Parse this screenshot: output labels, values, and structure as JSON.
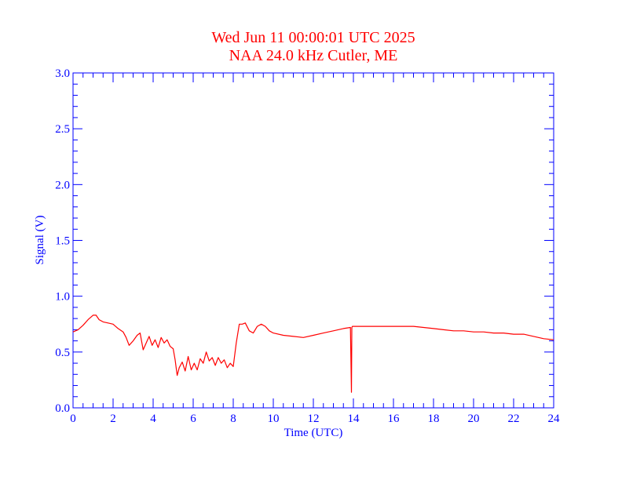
{
  "chart_data": {
    "type": "line",
    "title": "Wed Jun 11 00:00:01 UTC 2025",
    "subtitle": "NAA 24.0 kHz Cutler, ME",
    "xlabel": "Time (UTC)",
    "ylabel": "Signal (V)",
    "xlim": [
      0,
      24
    ],
    "ylim": [
      0.0,
      3.0
    ],
    "x_ticks": [
      "0",
      "2",
      "4",
      "6",
      "8",
      "10",
      "12",
      "14",
      "16",
      "18",
      "20",
      "22",
      "24"
    ],
    "y_ticks": [
      "0.0",
      "0.5",
      "1.0",
      "1.5",
      "2.0",
      "2.5",
      "3.0"
    ],
    "grid": false,
    "colors": {
      "axes": "#0000ff",
      "title": "#ff0000",
      "series": "#ff0000"
    },
    "series": [
      {
        "x": [
          0.0,
          0.25,
          0.5,
          0.75,
          1.0,
          1.15,
          1.3,
          1.5,
          1.75,
          2.0,
          2.25,
          2.5,
          2.65,
          2.8,
          3.0,
          3.2,
          3.35,
          3.5,
          3.65,
          3.8,
          3.95,
          4.1,
          4.25,
          4.4,
          4.55,
          4.7,
          4.85,
          5.0,
          5.1,
          5.2,
          5.3,
          5.45,
          5.6,
          5.75,
          5.9,
          6.05,
          6.2,
          6.35,
          6.5,
          6.65,
          6.8,
          6.95,
          7.1,
          7.25,
          7.4,
          7.55,
          7.7,
          7.85,
          8.0,
          8.15,
          8.3,
          8.45,
          8.6,
          8.8,
          9.0,
          9.2,
          9.4,
          9.6,
          9.8,
          10.0,
          10.5,
          11.0,
          11.5,
          12.0,
          12.5,
          13.0,
          13.5,
          13.85,
          13.9,
          13.92,
          13.95,
          14.0,
          14.5,
          15.0,
          15.5,
          16.0,
          16.5,
          17.0,
          17.5,
          18.0,
          18.5,
          19.0,
          19.5,
          20.0,
          20.5,
          21.0,
          21.5,
          22.0,
          22.5,
          23.0,
          23.5,
          24.0
        ],
        "y": [
          0.68,
          0.7,
          0.74,
          0.79,
          0.83,
          0.83,
          0.79,
          0.77,
          0.76,
          0.75,
          0.71,
          0.68,
          0.63,
          0.56,
          0.6,
          0.65,
          0.67,
          0.52,
          0.58,
          0.64,
          0.56,
          0.61,
          0.54,
          0.63,
          0.58,
          0.61,
          0.55,
          0.53,
          0.43,
          0.29,
          0.36,
          0.41,
          0.33,
          0.46,
          0.34,
          0.4,
          0.34,
          0.44,
          0.4,
          0.5,
          0.42,
          0.45,
          0.38,
          0.45,
          0.4,
          0.43,
          0.36,
          0.4,
          0.37,
          0.58,
          0.75,
          0.75,
          0.76,
          0.69,
          0.67,
          0.73,
          0.75,
          0.73,
          0.69,
          0.67,
          0.65,
          0.64,
          0.63,
          0.65,
          0.67,
          0.69,
          0.71,
          0.72,
          0.14,
          0.72,
          0.73,
          0.73,
          0.73,
          0.73,
          0.73,
          0.73,
          0.73,
          0.73,
          0.72,
          0.71,
          0.7,
          0.69,
          0.69,
          0.68,
          0.68,
          0.67,
          0.67,
          0.66,
          0.66,
          0.64,
          0.62,
          0.61
        ]
      }
    ]
  }
}
